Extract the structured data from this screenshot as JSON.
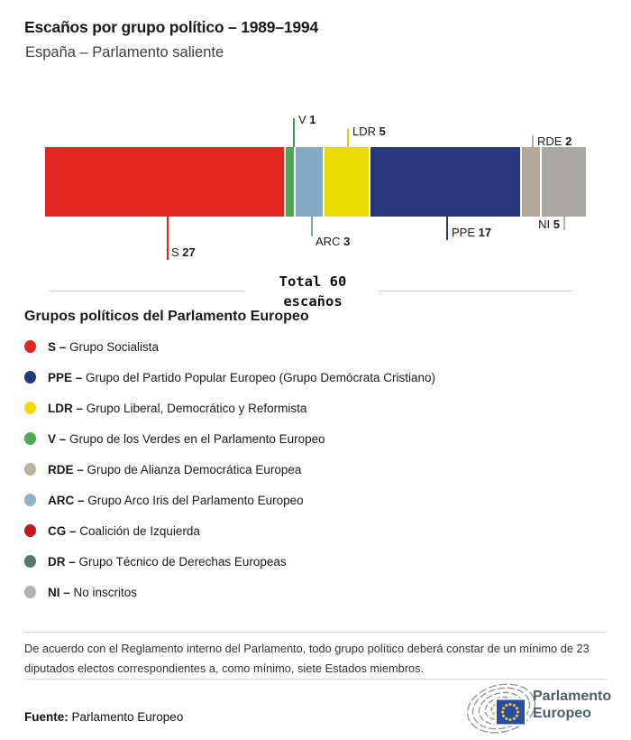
{
  "header": {
    "title": "Escaños por grupo político – 1989–1994",
    "subtitle": "España – Parlamento saliente"
  },
  "chart_data": {
    "type": "bar",
    "title": "Escaños por grupo político – 1989–1994",
    "subtitle": "España – Parlamento saliente",
    "orientation": "horizontal-stacked",
    "total_seats": 60,
    "total_line1": "Total 60",
    "total_line2": "escaños",
    "series": [
      {
        "abbr": "S",
        "seats": 27,
        "color": "#e42621",
        "label_position": "below"
      },
      {
        "abbr": "V",
        "seats": 1,
        "color": "#4aa950",
        "label_position": "above"
      },
      {
        "abbr": "ARC",
        "seats": 3,
        "color": "#84abc1",
        "label_position": "below"
      },
      {
        "abbr": "LDR",
        "seats": 5,
        "color": "#e9db00",
        "label_position": "above"
      },
      {
        "abbr": "PPE",
        "seats": 17,
        "color": "#27387c",
        "label_position": "below"
      },
      {
        "abbr": "RDE",
        "seats": 2,
        "color": "#b3a99a",
        "label_position": "above"
      },
      {
        "abbr": "NI",
        "seats": 5,
        "color": "#a9a8a4",
        "label_position": "below"
      }
    ]
  },
  "legend": {
    "heading": "Grupos políticos del Parlamento Europeo",
    "items": [
      {
        "abbr": "S",
        "name": "Grupo Socialista",
        "color": "#e42621"
      },
      {
        "abbr": "PPE",
        "name": "Grupo del Partido Popular Europeo (Grupo Demócrata Cristiano)",
        "color": "#243980"
      },
      {
        "abbr": "LDR",
        "name": "Grupo Liberal, Democrático y Reformista",
        "color": "#f0dc00"
      },
      {
        "abbr": "V",
        "name": "Grupo de los Verdes en el Parlamento Europeo",
        "color": "#4cab56"
      },
      {
        "abbr": "RDE",
        "name": "Grupo de Alianza Democrática Europea",
        "color": "#bcb2a2"
      },
      {
        "abbr": "ARC",
        "name": "Grupo Arco Iris del Parlamento Europeo",
        "color": "#8cb3c6"
      },
      {
        "abbr": "CG",
        "name": "Coalición de Izquierda",
        "color": "#c2191f"
      },
      {
        "abbr": "DR",
        "name": "Grupo Técnico de Derechas Europeas",
        "color": "#53796d"
      },
      {
        "abbr": "NI",
        "name": "No inscritos",
        "color": "#b2b2b0"
      }
    ]
  },
  "footnote": "De acuerdo con el Reglamento interno del Parlamento, todo grupo político deberá constar de un mínimo de 23 diputados electos correspondientes a, como mínimo, siete Estados miembros.",
  "footer": {
    "source_label": "Fuente:",
    "source_value": " Parlamento Europeo",
    "logo_line1": "Parlamento",
    "logo_line2": "Europeo"
  }
}
